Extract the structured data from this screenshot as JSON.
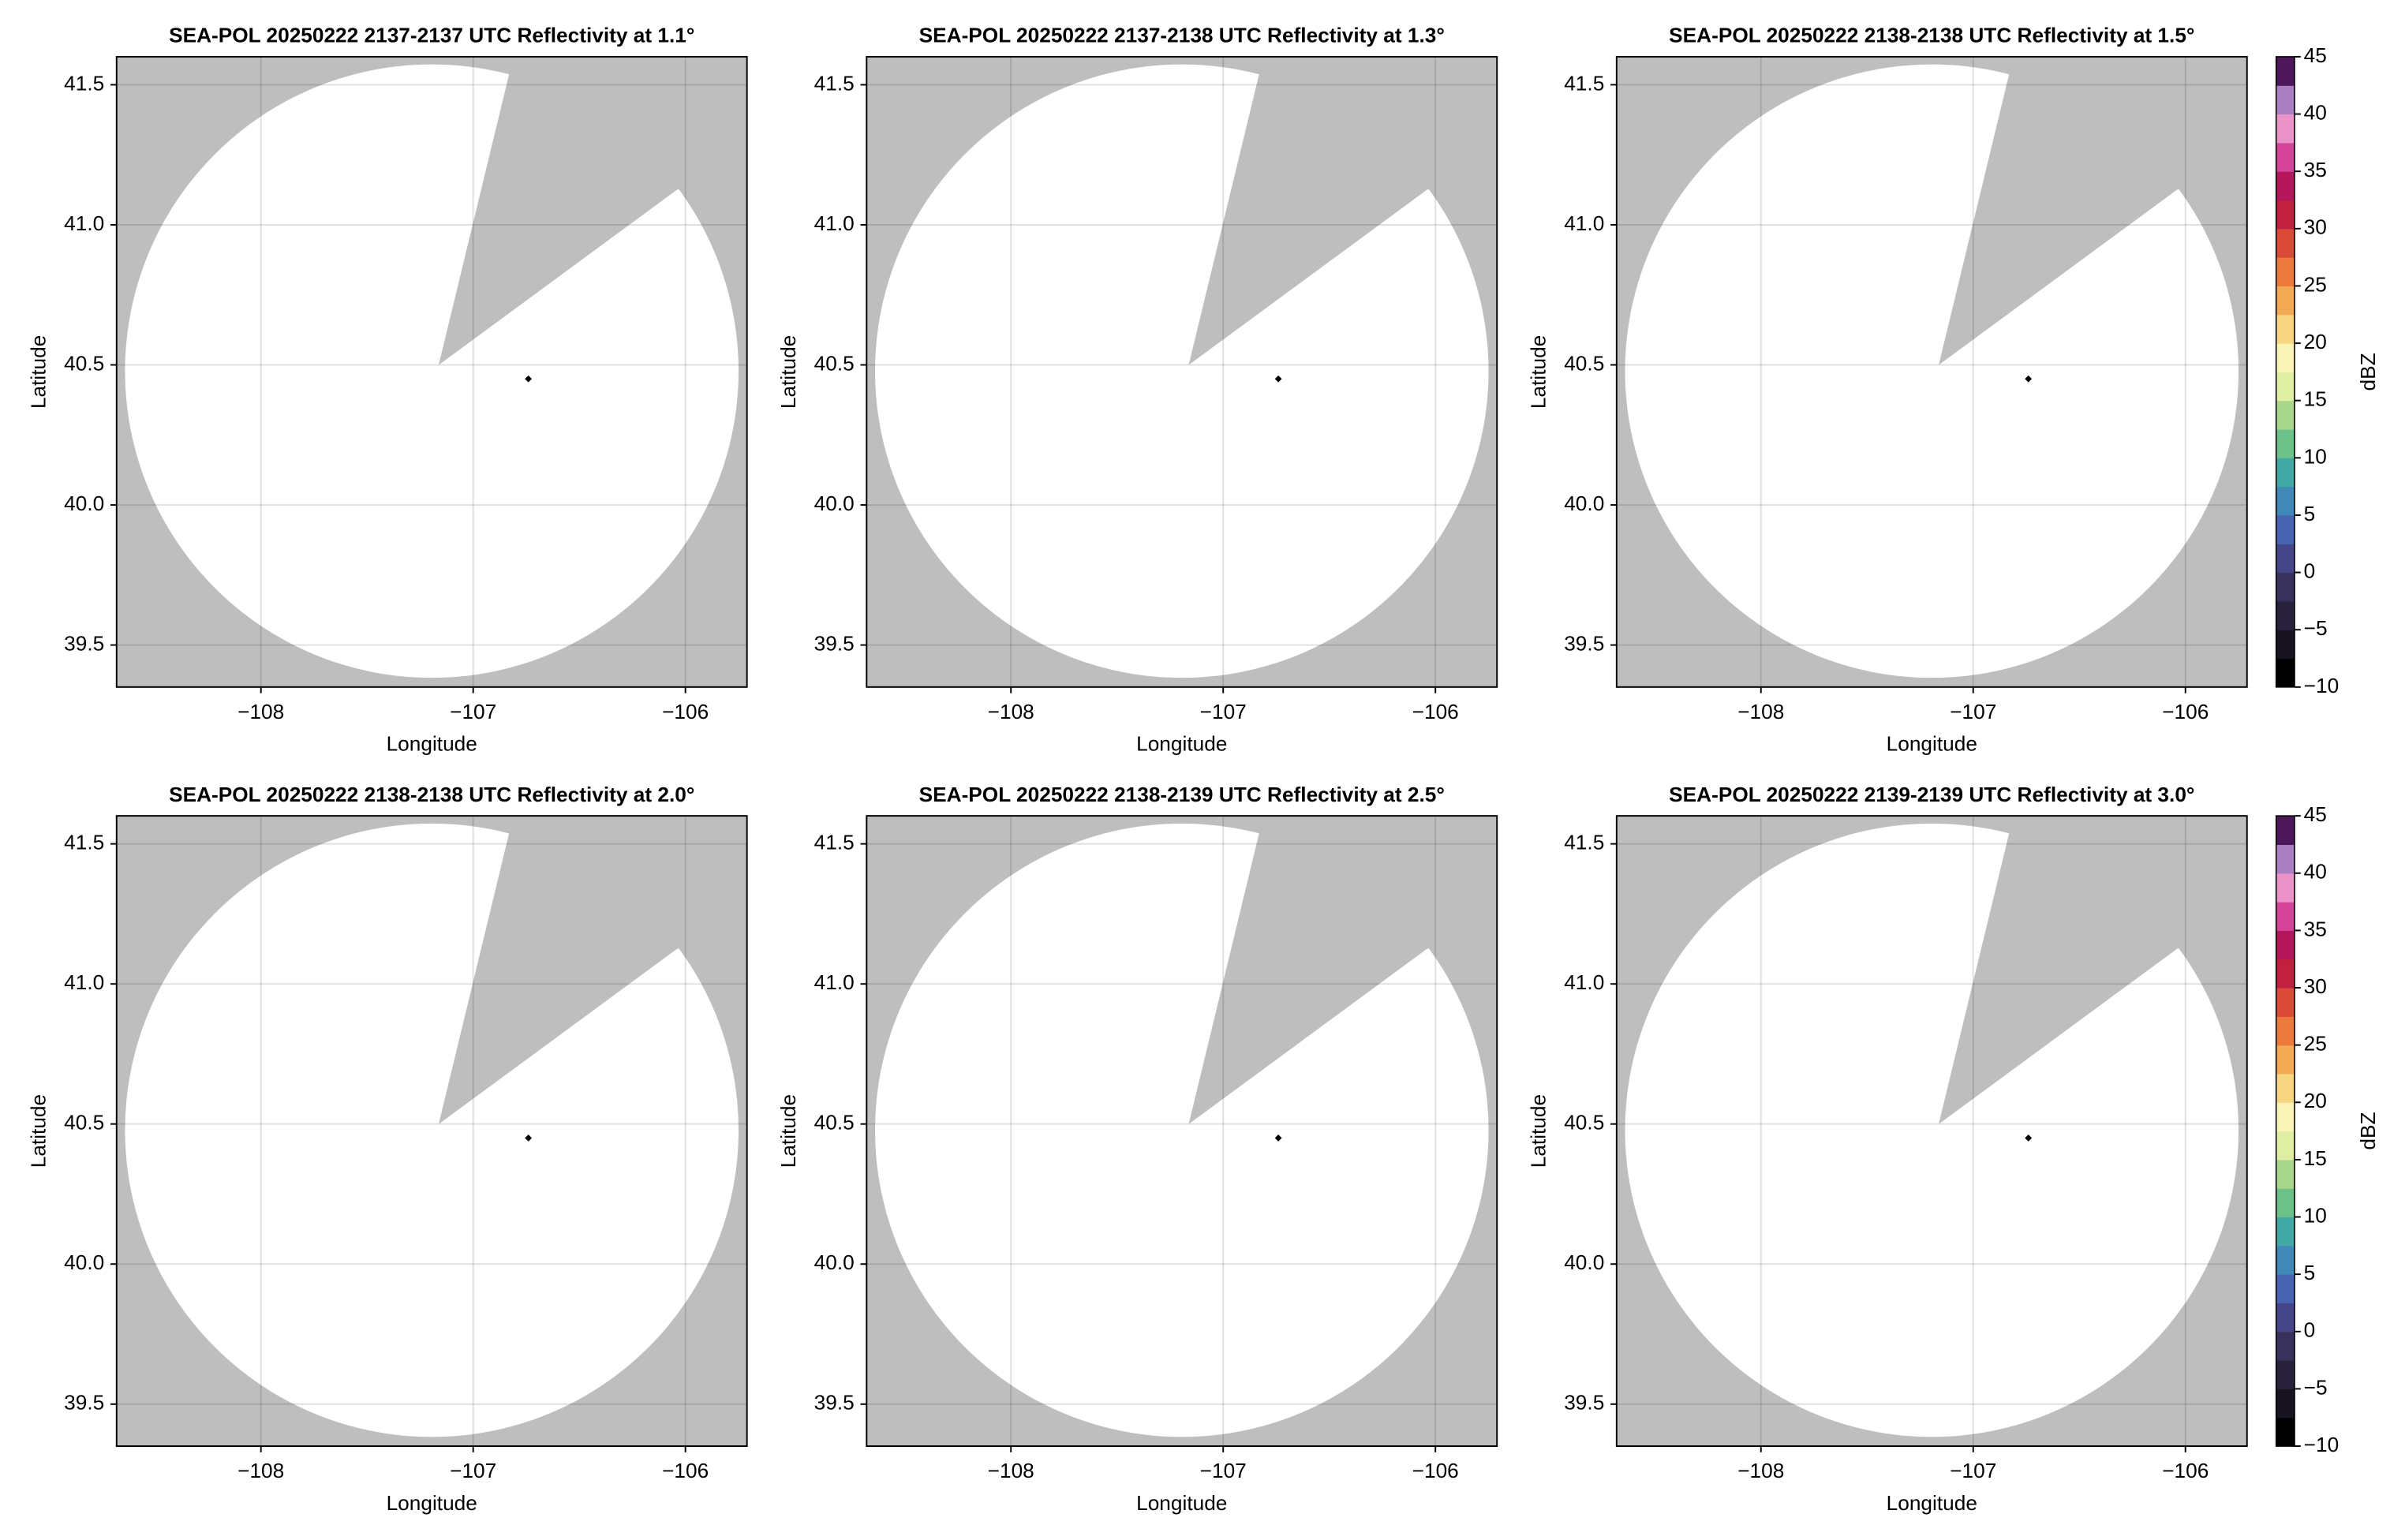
{
  "chart_data": [
    {
      "type": "scatter",
      "title": "SEA-POL 20250222 2137-2137 UTC Reflectivity at 1.1°",
      "xlabel": "Longitude",
      "ylabel": "Latitude",
      "x": [
        -106.74
      ],
      "values": [
        40.45
      ],
      "color": "#000000",
      "background": "#bebebe",
      "xlim": [
        -108.68,
        -105.71
      ],
      "ylim": [
        39.35,
        41.6
      ],
      "xticks": [
        {
          "value": -108,
          "label": "−108"
        },
        {
          "value": -107,
          "label": "−107"
        },
        {
          "value": -106,
          "label": "−106"
        }
      ],
      "yticks": [
        39.5,
        {
          "value": 40,
          "label": "40.0"
        },
        40.5,
        {
          "value": 41,
          "label": "41.0"
        },
        41.5
      ],
      "grid": true
    },
    {
      "type": "scatter",
      "title": "SEA-POL 20250222 2137-2138 UTC Reflectivity at 1.3°",
      "xlabel": "Longitude",
      "ylabel": "Latitude",
      "x": [
        -106.74
      ],
      "values": [
        40.45
      ],
      "color": "#000000",
      "background": "#bebebe",
      "xlim": [
        -108.68,
        -105.71
      ],
      "ylim": [
        39.35,
        41.6
      ],
      "xticks": [
        {
          "value": -108,
          "label": "−108"
        },
        {
          "value": -107,
          "label": "−107"
        },
        {
          "value": -106,
          "label": "−106"
        }
      ],
      "yticks": [
        39.5,
        {
          "value": 40,
          "label": "40.0"
        },
        40.5,
        {
          "value": 41,
          "label": "41.0"
        },
        41.5
      ],
      "grid": true
    },
    {
      "type": "scatter",
      "title": "SEA-POL 20250222 2138-2138 UTC Reflectivity at 1.5°",
      "xlabel": "Longitude",
      "ylabel": "Latitude",
      "x": [
        -106.74
      ],
      "values": [
        40.45
      ],
      "color": "#000000",
      "background": "#bebebe",
      "xlim": [
        -108.68,
        -105.71
      ],
      "ylim": [
        39.35,
        41.6
      ],
      "xticks": [
        {
          "value": -108,
          "label": "−108"
        },
        {
          "value": -107,
          "label": "−107"
        },
        {
          "value": -106,
          "label": "−106"
        }
      ],
      "yticks": [
        39.5,
        {
          "value": 40,
          "label": "40.0"
        },
        40.5,
        {
          "value": 41,
          "label": "41.0"
        },
        41.5
      ],
      "grid": true,
      "colorbar": {
        "label": "dBZ",
        "lim": [
          -10,
          45
        ],
        "ticks": [
          {
            "value": -10,
            "label": "−10"
          },
          {
            "value": -5,
            "label": "−5"
          },
          0,
          5,
          10,
          15,
          20,
          25,
          30,
          35,
          40,
          45
        ],
        "colors": [
          "#000000",
          "#171320",
          "#27213c",
          "#37315c",
          "#45458a",
          "#4a63b0",
          "#3f88b8",
          "#42a8a4",
          "#6cc08a",
          "#a8d68a",
          "#e0eea2",
          "#f9f3b6",
          "#f7d681",
          "#f3aa55",
          "#eb7a3c",
          "#da4a38",
          "#c2203f",
          "#b3165a",
          "#d6449a",
          "#eb93c8",
          "#a97fc0",
          "#4c1858"
        ]
      }
    },
    {
      "type": "scatter",
      "title": "SEA-POL 20250222 2138-2138 UTC Reflectivity at 2.0°",
      "xlabel": "Longitude",
      "ylabel": "Latitude",
      "x": [
        -106.74
      ],
      "values": [
        40.45
      ],
      "color": "#000000",
      "background": "#bebebe",
      "xlim": [
        -108.68,
        -105.71
      ],
      "ylim": [
        39.35,
        41.6
      ],
      "xticks": [
        {
          "value": -108,
          "label": "−108"
        },
        {
          "value": -107,
          "label": "−107"
        },
        {
          "value": -106,
          "label": "−106"
        }
      ],
      "yticks": [
        39.5,
        {
          "value": 40,
          "label": "40.0"
        },
        40.5,
        {
          "value": 41,
          "label": "41.0"
        },
        41.5
      ],
      "grid": true
    },
    {
      "type": "scatter",
      "title": "SEA-POL 20250222 2138-2139 UTC Reflectivity at 2.5°",
      "xlabel": "Longitude",
      "ylabel": "Latitude",
      "x": [
        -106.74
      ],
      "values": [
        40.45
      ],
      "color": "#000000",
      "background": "#bebebe",
      "xlim": [
        -108.68,
        -105.71
      ],
      "ylim": [
        39.35,
        41.6
      ],
      "xticks": [
        {
          "value": -108,
          "label": "−108"
        },
        {
          "value": -107,
          "label": "−107"
        },
        {
          "value": -106,
          "label": "−106"
        }
      ],
      "yticks": [
        39.5,
        {
          "value": 40,
          "label": "40.0"
        },
        40.5,
        {
          "value": 41,
          "label": "41.0"
        },
        41.5
      ],
      "grid": true
    },
    {
      "type": "scatter",
      "title": "SEA-POL 20250222 2139-2139 UTC Reflectivity at 3.0°",
      "xlabel": "Longitude",
      "ylabel": "Latitude",
      "x": [
        -106.74
      ],
      "values": [
        40.45
      ],
      "color": "#000000",
      "background": "#bebebe",
      "xlim": [
        -108.68,
        -105.71
      ],
      "ylim": [
        39.35,
        41.6
      ],
      "xticks": [
        {
          "value": -108,
          "label": "−108"
        },
        {
          "value": -107,
          "label": "−107"
        },
        {
          "value": -106,
          "label": "−106"
        }
      ],
      "yticks": [
        39.5,
        {
          "value": 40,
          "label": "40.0"
        },
        40.5,
        {
          "value": 41,
          "label": "41.0"
        },
        41.5
      ],
      "grid": true,
      "colorbar": {
        "label": "dBZ",
        "lim": [
          -10,
          45
        ],
        "ticks": [
          {
            "value": -10,
            "label": "−10"
          },
          {
            "value": -5,
            "label": "−5"
          },
          0,
          5,
          10,
          15,
          20,
          25,
          30,
          35,
          40,
          45
        ],
        "colors": [
          "#000000",
          "#171320",
          "#27213c",
          "#37315c",
          "#45458a",
          "#4a63b0",
          "#3f88b8",
          "#42a8a4",
          "#6cc08a",
          "#a8d68a",
          "#e0eea2",
          "#f9f3b6",
          "#f7d681",
          "#f3aa55",
          "#eb7a3c",
          "#da4a38",
          "#c2203f",
          "#b3165a",
          "#d6449a",
          "#eb93c8",
          "#a97fc0",
          "#4c1858"
        ]
      }
    }
  ]
}
